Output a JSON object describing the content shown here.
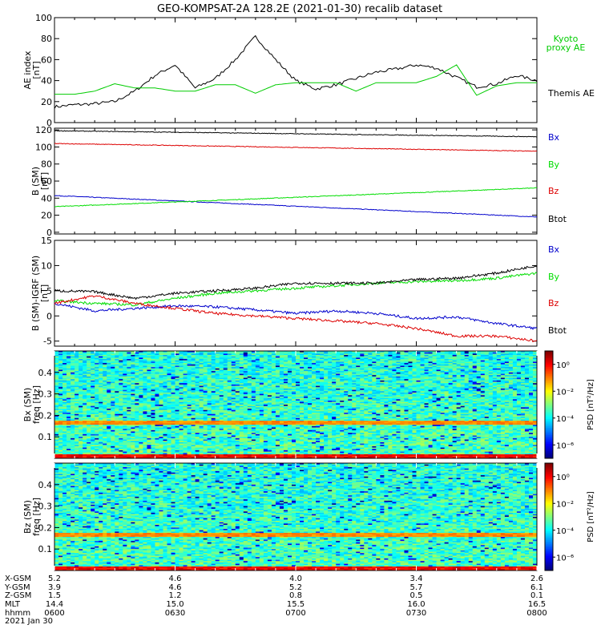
{
  "title": "GEO-KOMPSAT-2A 128.2E (2021-01-30) recalib dataset",
  "colors": {
    "black": "#000000",
    "red": "#dd0000",
    "green": "#00dd00",
    "blue": "#0000cc",
    "kyoto": "#00cc00"
  },
  "chart_data": [
    {
      "type": "line",
      "panel": "ae",
      "ylabel": [
        "AE index",
        "[nT]"
      ],
      "ylim": [
        0,
        100
      ],
      "yticks": [
        0,
        20,
        40,
        60,
        80,
        100
      ],
      "x": [
        0,
        5,
        10,
        15,
        20,
        25,
        30,
        35,
        40,
        45,
        50,
        55,
        60,
        65,
        70,
        75,
        80,
        85,
        90,
        95,
        100,
        105,
        110,
        115,
        120
      ],
      "series": [
        {
          "name": "Themis AE",
          "color": "#000000",
          "values": [
            15,
            17,
            18,
            20,
            30,
            45,
            55,
            33,
            42,
            60,
            82,
            60,
            40,
            32,
            36,
            42,
            48,
            51,
            55,
            52,
            43,
            34,
            37,
            45,
            40
          ]
        },
        {
          "name": "Kyoto proxy AE",
          "color": "#00cc00",
          "values": [
            27,
            27,
            30,
            37,
            33,
            33,
            30,
            30,
            36,
            36,
            28,
            36,
            38,
            38,
            38,
            30,
            38,
            38,
            38,
            44,
            55,
            26,
            35,
            38,
            38
          ]
        }
      ],
      "legend": [
        "Kyoto",
        "proxy AE",
        "Themis AE"
      ]
    },
    {
      "type": "line",
      "panel": "b",
      "ylabel": [
        "B (SM)",
        "[nT]"
      ],
      "ylim": [
        -2,
        122
      ],
      "yticks": [
        0,
        20,
        40,
        60,
        80,
        100,
        120
      ],
      "x": [
        0,
        120
      ],
      "series": [
        {
          "name": "Bx",
          "color": "#0000cc",
          "values": [
            43,
            18
          ]
        },
        {
          "name": "By",
          "color": "#00dd00",
          "values": [
            30,
            52
          ]
        },
        {
          "name": "Bz",
          "color": "#dd0000",
          "values": [
            104,
            95
          ]
        },
        {
          "name": "Btot",
          "color": "#000000",
          "values": [
            119,
            112
          ]
        }
      ]
    },
    {
      "type": "line",
      "panel": "db",
      "ylabel": [
        "B (SM)-IGRF (SM)",
        "[nT]"
      ],
      "ylim": [
        -6,
        15
      ],
      "yticks": [
        -5,
        0,
        5,
        10,
        15
      ],
      "x": [
        0,
        10,
        20,
        30,
        40,
        50,
        60,
        70,
        80,
        90,
        100,
        110,
        120
      ],
      "series": [
        {
          "name": "Bx",
          "color": "#0000cc",
          "values": [
            2.5,
            1.0,
            1.5,
            2.0,
            1.8,
            1.2,
            0.5,
            1.0,
            0.5,
            -0.5,
            -0.2,
            -1.5,
            -2.5
          ]
        },
        {
          "name": "By",
          "color": "#00dd00",
          "values": [
            3.0,
            2.5,
            2.2,
            3.5,
            4.5,
            5.0,
            5.5,
            6.0,
            6.5,
            6.8,
            7.0,
            7.5,
            8.5
          ]
        },
        {
          "name": "Bz",
          "color": "#dd0000",
          "values": [
            2.5,
            4.0,
            2.5,
            1.5,
            0.5,
            0.0,
            -0.5,
            -1.0,
            -1.5,
            -2.5,
            -4.0,
            -4.0,
            -5.0
          ]
        },
        {
          "name": "Btot",
          "color": "#000000",
          "values": [
            5.0,
            4.8,
            3.5,
            4.5,
            5.0,
            5.5,
            6.5,
            6.5,
            6.5,
            7.2,
            7.5,
            8.5,
            10.0
          ]
        }
      ]
    },
    {
      "type": "heatmap",
      "panel": "bxspec",
      "ylabel": [
        "Bx (SM)",
        "freq [Hz]"
      ],
      "ylim": [
        0,
        0.5
      ],
      "yticks": [
        0.1,
        0.2,
        0.3,
        0.4
      ],
      "cbar_label": "PSD [nT²/Hz]",
      "cbar_ticks": [
        "10⁰",
        "10⁻²",
        "10⁻⁴",
        "10⁻⁶"
      ],
      "cbar_exp": [
        0,
        -2,
        -4,
        -6
      ]
    },
    {
      "type": "heatmap",
      "panel": "bzspec",
      "ylabel": [
        "Bz (SM)",
        "freq [Hz]"
      ],
      "ylim": [
        0,
        0.5
      ],
      "yticks": [
        0.1,
        0.2,
        0.3,
        0.4
      ],
      "cbar_label": "PSD [nT²/Hz]",
      "cbar_ticks": [
        "10⁰",
        "10⁻²",
        "10⁻⁴",
        "10⁻⁶"
      ],
      "cbar_exp": [
        0,
        -2,
        -4,
        -6
      ]
    }
  ],
  "b_legend": [
    "Bx",
    "By",
    "Bz",
    "Btot"
  ],
  "ephemeris": {
    "labels": [
      "X-GSM",
      "Y-GSM",
      "Z-GSM",
      "MLT",
      "hhmm",
      "2021 Jan 30"
    ],
    "columns": [
      [
        "5.2",
        "3.9",
        "1.5",
        "14.4",
        "0600"
      ],
      [
        "4.6",
        "4.6",
        "1.2",
        "15.0",
        "0630"
      ],
      [
        "4.0",
        "5.2",
        "0.8",
        "15.5",
        "0700"
      ],
      [
        "3.4",
        "5.7",
        "0.5",
        "16.0",
        "0730"
      ],
      [
        "2.6",
        "6.1",
        "0.1",
        "16.5",
        "0800"
      ]
    ]
  }
}
